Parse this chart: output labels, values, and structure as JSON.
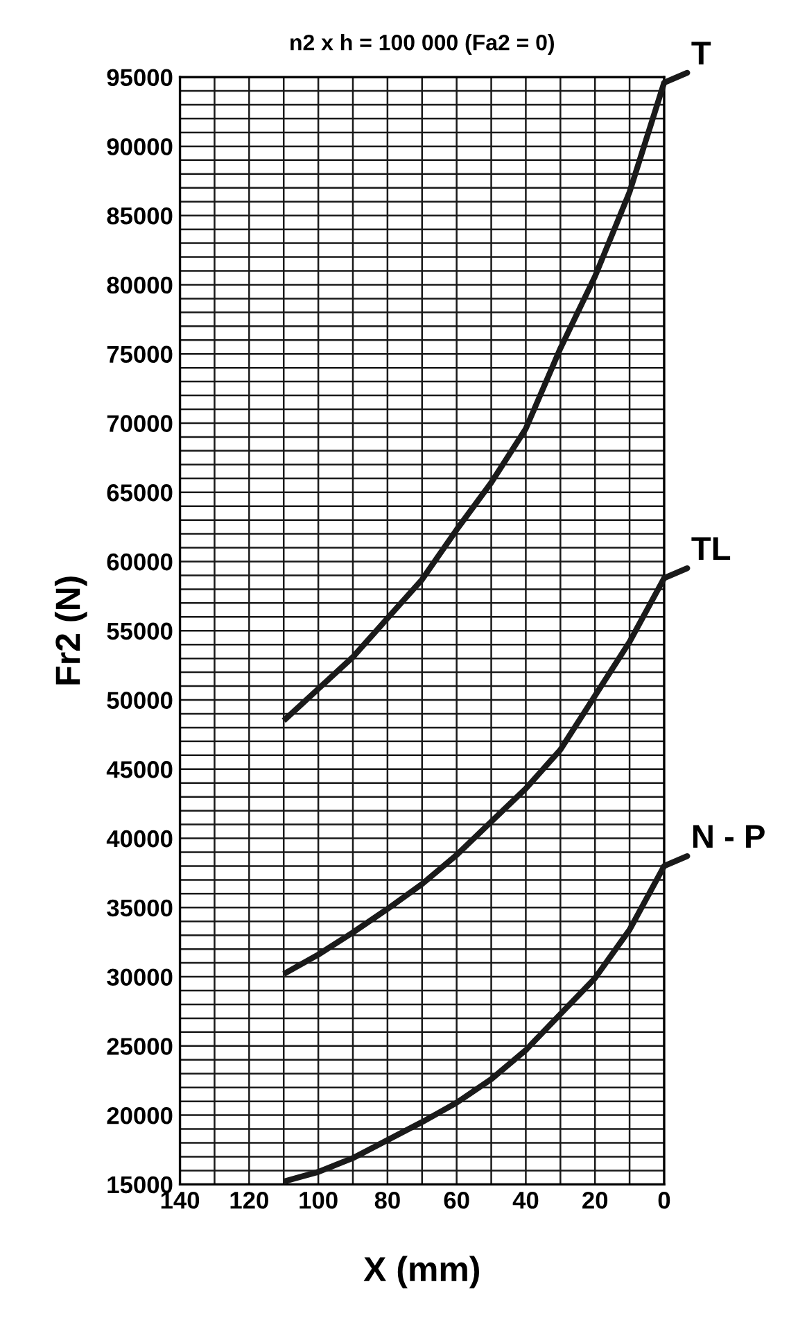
{
  "chart_data": {
    "type": "line",
    "title": "n2 x h = 100 000 (Fa2 = 0)",
    "xlabel": "X (mm)",
    "ylabel": "Fr2 (N)",
    "xlim": [
      140,
      0
    ],
    "ylim": [
      15000,
      95000
    ],
    "xticks": [
      140,
      {
        "value": 130,
        "label": null
      },
      120,
      {
        "value": 110,
        "label": null
      },
      100,
      {
        "value": 90,
        "label": null
      },
      80,
      {
        "value": 70,
        "label": null
      },
      60,
      {
        "value": 50,
        "label": null
      },
      40,
      {
        "value": 30,
        "label": null
      },
      20,
      {
        "value": 10,
        "label": null
      },
      0
    ],
    "yticks": [
      15000,
      {
        "value": 16000,
        "label": null
      },
      {
        "value": 17000,
        "label": null
      },
      {
        "value": 18000,
        "label": null
      },
      {
        "value": 19000,
        "label": null
      },
      20000,
      {
        "value": 21000,
        "label": null
      },
      {
        "value": 22000,
        "label": null
      },
      {
        "value": 23000,
        "label": null
      },
      {
        "value": 24000,
        "label": null
      },
      25000,
      {
        "value": 26000,
        "label": null
      },
      {
        "value": 27000,
        "label": null
      },
      {
        "value": 28000,
        "label": null
      },
      {
        "value": 29000,
        "label": null
      },
      30000,
      {
        "value": 31000,
        "label": null
      },
      {
        "value": 32000,
        "label": null
      },
      {
        "value": 33000,
        "label": null
      },
      {
        "value": 34000,
        "label": null
      },
      35000,
      {
        "value": 36000,
        "label": null
      },
      {
        "value": 37000,
        "label": null
      },
      {
        "value": 38000,
        "label": null
      },
      {
        "value": 39000,
        "label": null
      },
      40000,
      {
        "value": 41000,
        "label": null
      },
      {
        "value": 42000,
        "label": null
      },
      {
        "value": 43000,
        "label": null
      },
      {
        "value": 44000,
        "label": null
      },
      45000,
      {
        "value": 46000,
        "label": null
      },
      {
        "value": 47000,
        "label": null
      },
      {
        "value": 48000,
        "label": null
      },
      {
        "value": 49000,
        "label": null
      },
      50000,
      {
        "value": 51000,
        "label": null
      },
      {
        "value": 52000,
        "label": null
      },
      {
        "value": 53000,
        "label": null
      },
      {
        "value": 54000,
        "label": null
      },
      55000,
      {
        "value": 56000,
        "label": null
      },
      {
        "value": 57000,
        "label": null
      },
      {
        "value": 58000,
        "label": null
      },
      {
        "value": 59000,
        "label": null
      },
      60000,
      {
        "value": 61000,
        "label": null
      },
      {
        "value": 62000,
        "label": null
      },
      {
        "value": 63000,
        "label": null
      },
      {
        "value": 64000,
        "label": null
      },
      65000,
      {
        "value": 66000,
        "label": null
      },
      {
        "value": 67000,
        "label": null
      },
      {
        "value": 68000,
        "label": null
      },
      {
        "value": 69000,
        "label": null
      },
      70000,
      {
        "value": 71000,
        "label": null
      },
      {
        "value": 72000,
        "label": null
      },
      {
        "value": 73000,
        "label": null
      },
      {
        "value": 74000,
        "label": null
      },
      75000,
      {
        "value": 76000,
        "label": null
      },
      {
        "value": 77000,
        "label": null
      },
      {
        "value": 78000,
        "label": null
      },
      {
        "value": 79000,
        "label": null
      },
      80000,
      {
        "value": 81000,
        "label": null
      },
      {
        "value": 82000,
        "label": null
      },
      {
        "value": 83000,
        "label": null
      },
      {
        "value": 84000,
        "label": null
      },
      85000,
      {
        "value": 86000,
        "label": null
      },
      {
        "value": 87000,
        "label": null
      },
      {
        "value": 88000,
        "label": null
      },
      {
        "value": 89000,
        "label": null
      },
      90000,
      {
        "value": 91000,
        "label": null
      },
      {
        "value": 92000,
        "label": null
      },
      {
        "value": 93000,
        "label": null
      },
      {
        "value": 94000,
        "label": null
      },
      95000
    ],
    "grid": true,
    "marker": "none",
    "line_style": "solid",
    "x": [
      110,
      100,
      90,
      80,
      70,
      60,
      50,
      40,
      30,
      20,
      10,
      0
    ],
    "series": [
      {
        "name": "T",
        "color": "#1a1a1a",
        "values": [
          48500,
          50800,
          53100,
          55900,
          58700,
          62300,
          65700,
          69600,
          75400,
          80600,
          86700,
          94600
        ]
      },
      {
        "name": "TL",
        "color": "#1a1a1a",
        "values": [
          30200,
          31600,
          33200,
          34900,
          36700,
          38800,
          41200,
          43600,
          46400,
          50300,
          54200,
          58800
        ]
      },
      {
        "name": "N - P",
        "color": "#1a1a1a",
        "values": [
          15200,
          15900,
          16900,
          18200,
          19500,
          20900,
          22600,
          24700,
          27300,
          29900,
          33400,
          38000
        ]
      }
    ]
  }
}
